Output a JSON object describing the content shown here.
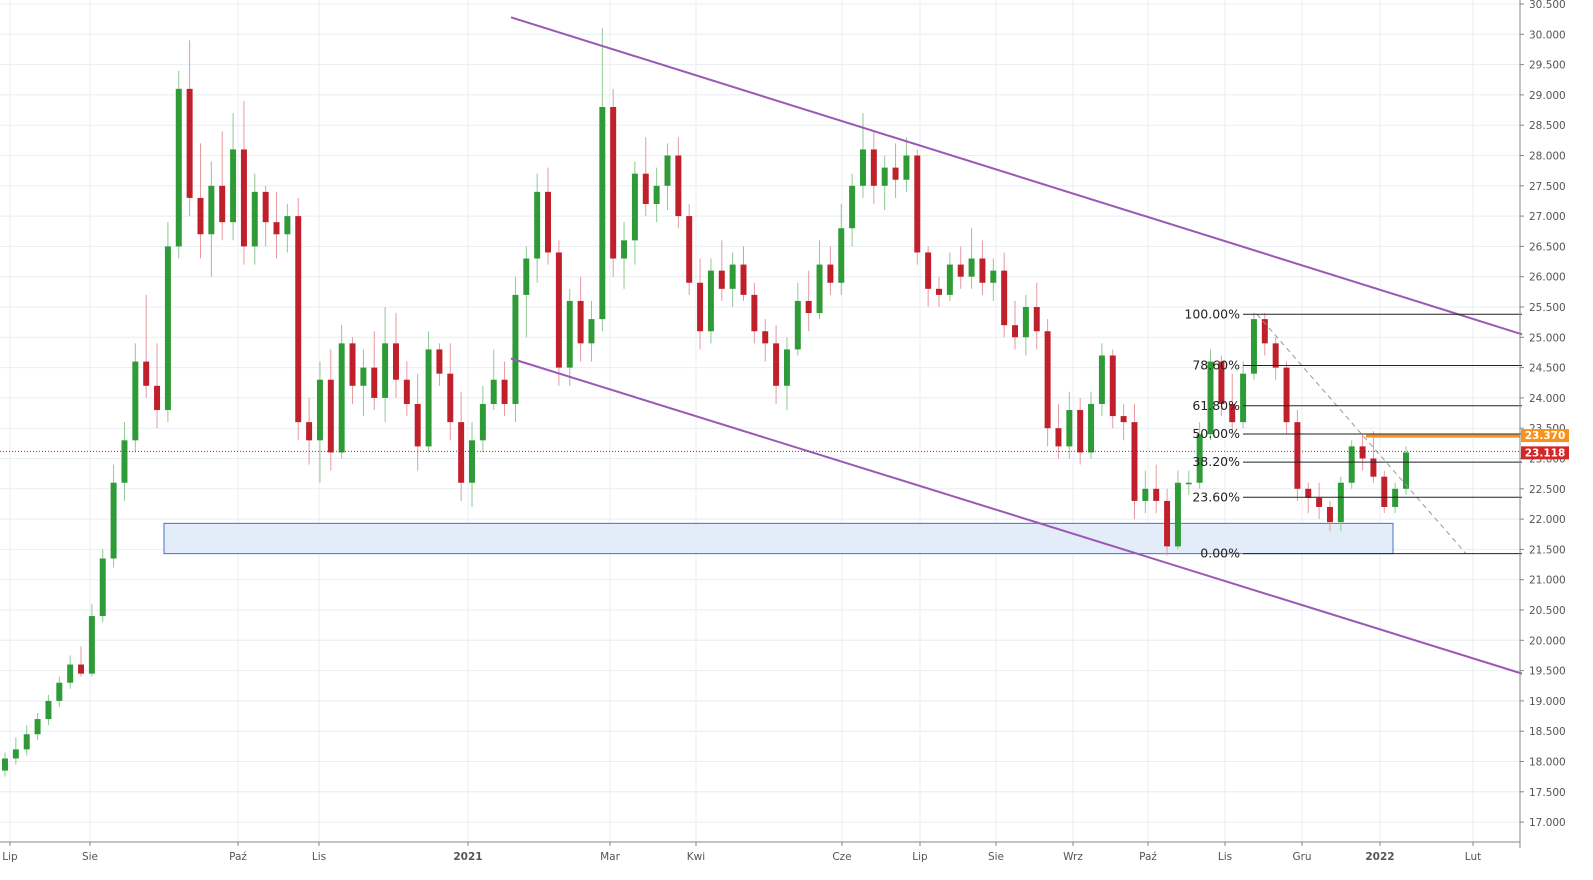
{
  "chart_data": {
    "type": "candlestick",
    "instrument": "",
    "price_axis": {
      "ylim": [
        16.75,
        30.5
      ],
      "ticks": [
        "30.500",
        "30.000",
        "29.500",
        "29.000",
        "28.500",
        "28.000",
        "27.500",
        "27.000",
        "26.500",
        "26.000",
        "25.500",
        "25.000",
        "24.500",
        "24.000",
        "23.500",
        "23.000",
        "22.500",
        "22.000",
        "21.500",
        "21.000",
        "20.500",
        "20.000",
        "19.500",
        "19.000",
        "18.500",
        "18.000",
        "17.500",
        "17.000"
      ]
    },
    "time_axis": {
      "labels": [
        "Lip",
        "Sie",
        "Paź",
        "Lis",
        "2021",
        "Mar",
        "Kwi",
        "Cze",
        "Lip",
        "Sie",
        "Wrz",
        "Paź",
        "Lis",
        "Gru",
        "2022",
        "Lut"
      ],
      "bold_labels": [
        "2021",
        "2022"
      ]
    },
    "price_tags": [
      {
        "value": "23.370",
        "color": "#f7931a"
      },
      {
        "value": "23.118",
        "color": "#d62728"
      }
    ],
    "last_price": 23.118,
    "fibonacci": {
      "high": 25.38,
      "low": 21.43,
      "levels": [
        {
          "label": "100.00%",
          "price": 25.38
        },
        {
          "label": "78.60%",
          "price": 24.535
        },
        {
          "label": "61.80%",
          "price": 23.87
        },
        {
          "label": "50.00%",
          "price": 23.405
        },
        {
          "label": "38.20%",
          "price": 22.94
        },
        {
          "label": "23.60%",
          "price": 22.36
        },
        {
          "label": "0.00%",
          "price": 21.43
        }
      ]
    },
    "support_zone": {
      "from_price": 21.43,
      "to_price": 21.93,
      "start": "2020-09",
      "end": "2022-01"
    },
    "channel": {
      "upper": [
        {
          "t": "2021-01",
          "price": 30.28
        },
        {
          "t": "2022-02",
          "price": 25.05
        }
      ],
      "lower": [
        {
          "t": "2021-01",
          "price": 24.65
        },
        {
          "t": "2022-02",
          "price": 19.45
        }
      ]
    },
    "colors": {
      "up": "#2e9b37",
      "down": "#c0202b",
      "channel": "#9b59b6",
      "zone_fill": "#e3edf9",
      "zone_border": "#4a6fc9",
      "resistance": "#f7931a"
    },
    "series": [
      {
        "values": [
          [
            17.85,
            18.15,
            17.75,
            18.05
          ],
          [
            18.05,
            18.4,
            17.95,
            18.2
          ],
          [
            18.2,
            18.6,
            18.1,
            18.45
          ],
          [
            18.45,
            18.8,
            18.35,
            18.7
          ],
          [
            18.7,
            19.1,
            18.6,
            19.0
          ],
          [
            19.0,
            19.4,
            18.9,
            19.3
          ],
          [
            19.3,
            19.75,
            19.2,
            19.6
          ],
          [
            19.6,
            19.9,
            19.4,
            19.45
          ],
          [
            19.45,
            20.6,
            19.4,
            20.4
          ],
          [
            20.4,
            21.5,
            20.3,
            21.35
          ],
          [
            21.35,
            22.9,
            21.2,
            22.6
          ],
          [
            22.6,
            23.6,
            22.3,
            23.3
          ],
          [
            23.3,
            24.9,
            23.1,
            24.6
          ],
          [
            24.6,
            25.7,
            24.0,
            24.2
          ],
          [
            24.2,
            24.9,
            23.5,
            23.8
          ],
          [
            23.8,
            26.9,
            23.6,
            26.5
          ],
          [
            26.5,
            29.4,
            26.3,
            29.1
          ],
          [
            29.1,
            29.9,
            27.0,
            27.3
          ],
          [
            27.3,
            28.2,
            26.3,
            26.7
          ],
          [
            26.7,
            27.9,
            26.0,
            27.5
          ],
          [
            27.5,
            28.4,
            26.6,
            26.9
          ],
          [
            26.9,
            28.7,
            26.6,
            28.1
          ],
          [
            28.1,
            28.9,
            26.2,
            26.5
          ],
          [
            26.5,
            27.7,
            26.2,
            27.4
          ],
          [
            27.4,
            27.5,
            26.5,
            26.9
          ],
          [
            26.9,
            27.4,
            26.3,
            26.7
          ],
          [
            26.7,
            27.2,
            26.4,
            27.0
          ],
          [
            27.0,
            27.3,
            23.3,
            23.6
          ],
          [
            23.6,
            24.0,
            22.9,
            23.3
          ],
          [
            23.3,
            24.6,
            22.6,
            24.3
          ],
          [
            24.3,
            24.8,
            22.8,
            23.1
          ],
          [
            23.1,
            25.2,
            23.0,
            24.9
          ],
          [
            24.9,
            25.0,
            23.9,
            24.2
          ],
          [
            24.2,
            24.8,
            23.7,
            24.5
          ],
          [
            24.5,
            25.1,
            23.8,
            24.0
          ],
          [
            24.0,
            25.5,
            23.6,
            24.9
          ],
          [
            24.9,
            25.4,
            24.0,
            24.3
          ],
          [
            24.3,
            24.6,
            23.7,
            23.9
          ],
          [
            23.9,
            24.4,
            22.8,
            23.2
          ],
          [
            23.2,
            25.1,
            23.1,
            24.8
          ],
          [
            24.8,
            24.9,
            24.2,
            24.4
          ],
          [
            24.4,
            24.9,
            23.3,
            23.6
          ],
          [
            23.6,
            24.1,
            22.3,
            22.6
          ],
          [
            22.6,
            23.6,
            22.2,
            23.3
          ],
          [
            23.3,
            24.2,
            23.1,
            23.9
          ],
          [
            23.9,
            24.8,
            23.8,
            24.3
          ],
          [
            24.3,
            24.6,
            23.7,
            23.9
          ],
          [
            23.9,
            26.0,
            23.6,
            25.7
          ],
          [
            25.7,
            26.5,
            25.0,
            26.3
          ],
          [
            26.3,
            27.7,
            25.9,
            27.4
          ],
          [
            27.4,
            27.8,
            26.2,
            26.4
          ],
          [
            26.4,
            26.6,
            24.2,
            24.5
          ],
          [
            24.5,
            25.8,
            24.2,
            25.6
          ],
          [
            25.6,
            26.0,
            24.6,
            24.9
          ],
          [
            24.9,
            25.6,
            24.6,
            25.3
          ],
          [
            25.3,
            30.1,
            25.1,
            28.8
          ],
          [
            28.8,
            29.1,
            26.0,
            26.3
          ],
          [
            26.3,
            26.9,
            25.8,
            26.6
          ],
          [
            26.6,
            27.9,
            26.2,
            27.7
          ],
          [
            27.7,
            28.3,
            27.0,
            27.2
          ],
          [
            27.2,
            27.8,
            26.9,
            27.5
          ],
          [
            27.5,
            28.2,
            27.1,
            28.0
          ],
          [
            28.0,
            28.3,
            26.8,
            27.0
          ],
          [
            27.0,
            27.2,
            25.7,
            25.9
          ],
          [
            25.9,
            26.3,
            24.8,
            25.1
          ],
          [
            25.1,
            26.3,
            24.9,
            26.1
          ],
          [
            26.1,
            26.6,
            25.6,
            25.8
          ],
          [
            25.8,
            26.4,
            25.5,
            26.2
          ],
          [
            26.2,
            26.5,
            25.6,
            25.7
          ],
          [
            25.7,
            25.9,
            24.9,
            25.1
          ],
          [
            25.1,
            25.3,
            24.6,
            24.9
          ],
          [
            24.9,
            25.2,
            23.9,
            24.2
          ],
          [
            24.2,
            25.0,
            23.8,
            24.8
          ],
          [
            24.8,
            25.9,
            24.7,
            25.6
          ],
          [
            25.6,
            26.1,
            25.1,
            25.4
          ],
          [
            25.4,
            26.6,
            25.3,
            26.2
          ],
          [
            26.2,
            26.5,
            25.7,
            25.9
          ],
          [
            25.9,
            27.2,
            25.7,
            26.8
          ],
          [
            26.8,
            27.7,
            26.5,
            27.5
          ],
          [
            27.5,
            28.7,
            27.3,
            28.1
          ],
          [
            28.1,
            28.4,
            27.2,
            27.5
          ],
          [
            27.5,
            28.0,
            27.1,
            27.8
          ],
          [
            27.8,
            28.2,
            27.3,
            27.6
          ],
          [
            27.6,
            28.3,
            27.4,
            28.0
          ],
          [
            28.0,
            28.1,
            26.2,
            26.4
          ],
          [
            26.4,
            26.5,
            25.5,
            25.8
          ],
          [
            25.8,
            26.0,
            25.5,
            25.7
          ],
          [
            25.7,
            26.4,
            25.6,
            26.2
          ],
          [
            26.2,
            26.5,
            25.8,
            26.0
          ],
          [
            26.0,
            26.8,
            25.8,
            26.3
          ],
          [
            26.3,
            26.6,
            25.7,
            25.9
          ],
          [
            25.9,
            26.3,
            25.6,
            26.1
          ],
          [
            26.1,
            26.4,
            25.0,
            25.2
          ],
          [
            25.2,
            25.6,
            24.8,
            25.0
          ],
          [
            25.0,
            25.7,
            24.7,
            25.5
          ],
          [
            25.5,
            25.9,
            24.8,
            25.1
          ],
          [
            25.1,
            25.3,
            23.2,
            23.5
          ],
          [
            23.5,
            23.9,
            23.0,
            23.2
          ],
          [
            23.2,
            24.1,
            23.0,
            23.8
          ],
          [
            23.8,
            24.0,
            22.9,
            23.1
          ],
          [
            23.1,
            24.1,
            23.0,
            23.9
          ],
          [
            23.9,
            24.9,
            23.7,
            24.7
          ],
          [
            24.7,
            24.8,
            23.5,
            23.7
          ],
          [
            23.7,
            23.9,
            23.3,
            23.6
          ],
          [
            23.6,
            23.9,
            22.0,
            22.3
          ],
          [
            22.3,
            22.8,
            22.1,
            22.5
          ],
          [
            22.5,
            22.9,
            22.1,
            22.3
          ],
          [
            22.3,
            22.5,
            21.4,
            21.55
          ],
          [
            21.55,
            22.8,
            21.5,
            22.6
          ],
          [
            22.6,
            22.8,
            22.4,
            22.6
          ],
          [
            22.6,
            23.6,
            22.5,
            23.4
          ],
          [
            23.4,
            24.8,
            23.3,
            24.6
          ],
          [
            24.6,
            24.7,
            23.7,
            23.9
          ],
          [
            23.9,
            24.4,
            23.4,
            23.6
          ],
          [
            23.6,
            24.6,
            23.5,
            24.4
          ],
          [
            24.4,
            25.4,
            24.3,
            25.3
          ],
          [
            25.3,
            25.4,
            24.7,
            24.9
          ],
          [
            24.9,
            25.0,
            24.3,
            24.5
          ],
          [
            24.5,
            24.6,
            23.4,
            23.6
          ],
          [
            23.6,
            23.8,
            22.3,
            22.5
          ],
          [
            22.5,
            22.6,
            22.1,
            22.35
          ],
          [
            22.35,
            22.6,
            22.0,
            22.2
          ],
          [
            22.2,
            22.3,
            21.8,
            21.95
          ],
          [
            21.95,
            22.7,
            21.8,
            22.6
          ],
          [
            22.6,
            23.3,
            22.5,
            23.2
          ],
          [
            23.2,
            23.4,
            22.8,
            23.0
          ],
          [
            23.0,
            23.45,
            22.6,
            22.7
          ],
          [
            22.7,
            22.8,
            22.1,
            22.2
          ],
          [
            22.2,
            22.6,
            22.1,
            22.5
          ],
          [
            22.5,
            23.2,
            22.4,
            23.1
          ]
        ]
      }
    ]
  }
}
